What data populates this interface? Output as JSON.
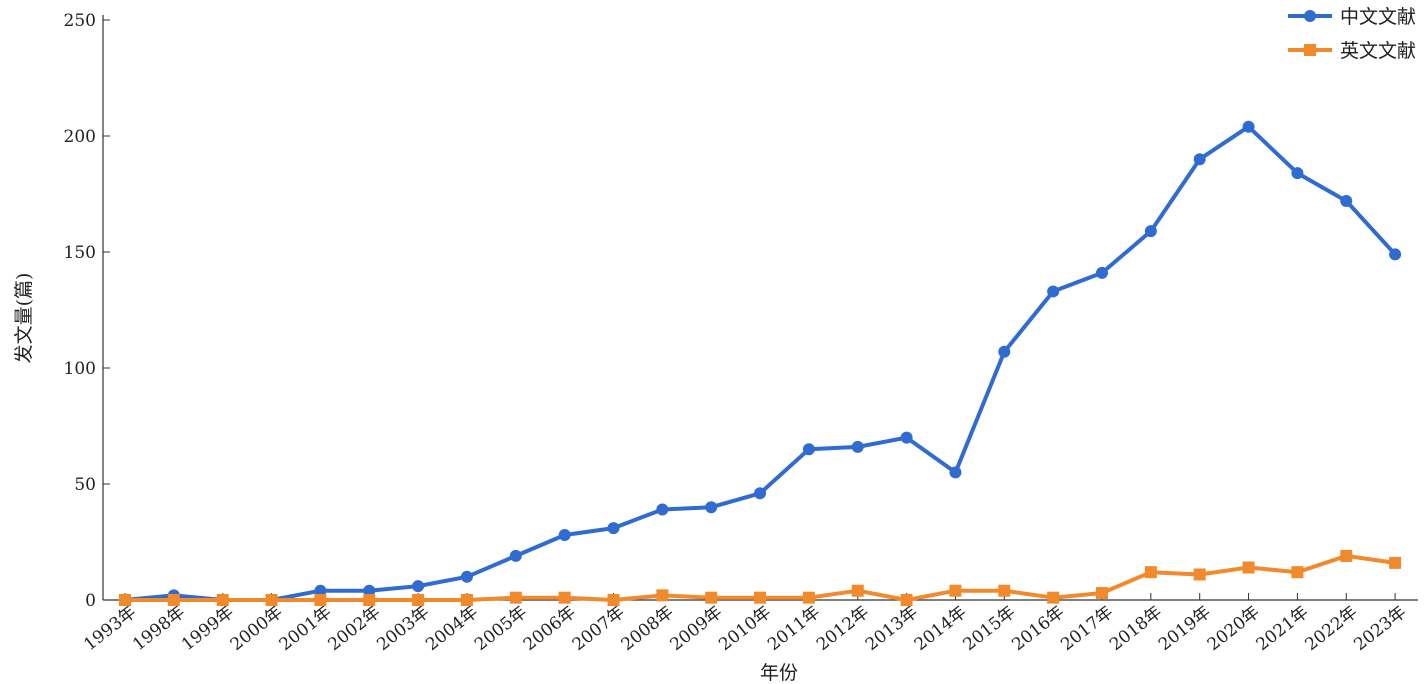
{
  "chart_data": {
    "type": "line",
    "xlabel": "年份",
    "ylabel": "发文量(篇)",
    "ylim": [
      0,
      250
    ],
    "yticks": [
      0,
      50,
      100,
      150,
      200,
      250
    ],
    "grid": false,
    "legend_position": "top-right",
    "categories": [
      "1993年",
      "1998年",
      "1999年",
      "2000年",
      "2001年",
      "2002年",
      "2003年",
      "2004年",
      "2005年",
      "2006年",
      "2007年",
      "2008年",
      "2009年",
      "2010年",
      "2011年",
      "2012年",
      "2013年",
      "2014年",
      "2015年",
      "2016年",
      "2017年",
      "2018年",
      "2019年",
      "2020年",
      "2021年",
      "2022年",
      "2023年"
    ],
    "series": [
      {
        "name": "中文文献",
        "color": "#2f6bd0",
        "marker": "circle",
        "values": [
          0,
          2,
          0,
          0,
          4,
          4,
          6,
          10,
          19,
          28,
          31,
          39,
          40,
          46,
          65,
          66,
          70,
          55,
          107,
          133,
          141,
          159,
          190,
          204,
          184,
          172,
          149
        ]
      },
      {
        "name": "英文文献",
        "color": "#f08a2c",
        "marker": "square",
        "values": [
          0,
          0,
          0,
          0,
          0,
          0,
          0,
          0,
          1,
          1,
          0,
          2,
          1,
          1,
          1,
          4,
          0,
          4,
          4,
          1,
          3,
          12,
          11,
          14,
          12,
          19,
          16
        ]
      }
    ]
  }
}
